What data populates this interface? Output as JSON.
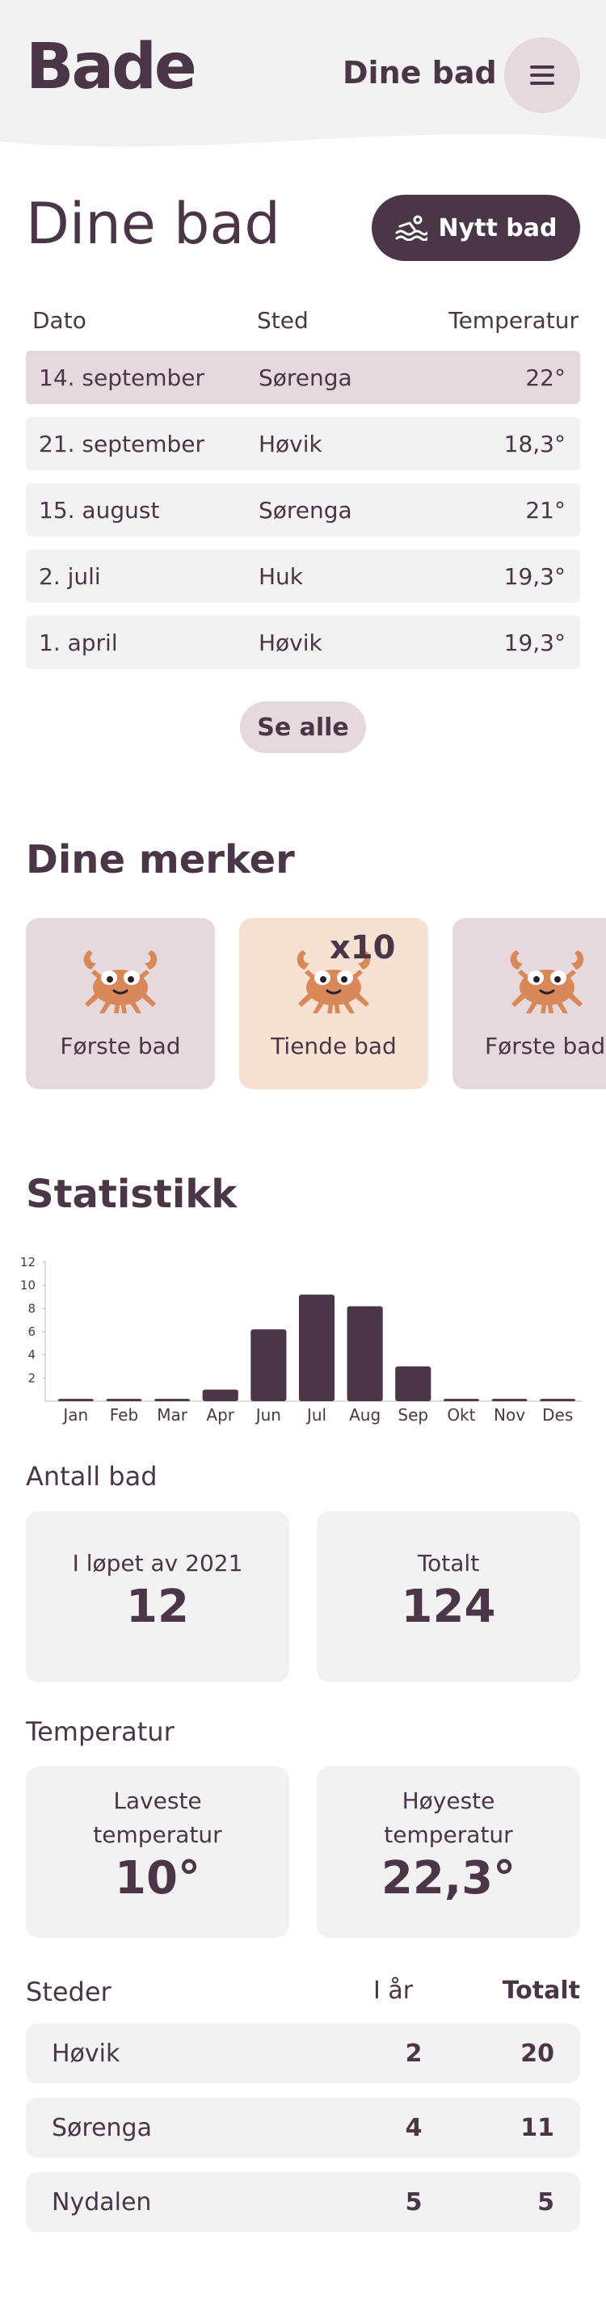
{
  "header": {
    "logo": "Bade",
    "nav_label": "Dine bad",
    "menu_icon": "hamburger-icon"
  },
  "baths": {
    "title": "Dine bad",
    "new_button": "Nytt bad",
    "new_button_icon": "swimmer-icon",
    "columns": [
      "Dato",
      "Sted",
      "Temperatur"
    ],
    "rows": [
      {
        "date": "14. september",
        "place": "Sørenga",
        "temp": "22°"
      },
      {
        "date": "21. september",
        "place": "Høvik",
        "temp": "18,3°"
      },
      {
        "date": "15. august",
        "place": "Sørenga",
        "temp": "21°"
      },
      {
        "date": "2. juli",
        "place": "Huk",
        "temp": "19,3°"
      },
      {
        "date": "1. april",
        "place": "Høvik",
        "temp": "19,3°"
      }
    ],
    "see_all": "Se alle"
  },
  "badges": {
    "title": "Dine merker",
    "items": [
      {
        "label": "Første bad",
        "icon": "crab-icon",
        "count": ""
      },
      {
        "label": "Tiende bad",
        "icon": "crab-icon",
        "count": "x10"
      },
      {
        "label": "Første bad",
        "icon": "crab-icon",
        "count": ""
      }
    ]
  },
  "stats": {
    "title": "Statistikk",
    "count_heading": "Antall bad",
    "year_label": "I løpet av 2021",
    "year_value": "12",
    "total_label": "Totalt",
    "total_value": "124",
    "temp_heading": "Temperatur",
    "min_label": "Laveste temperatur",
    "min_value": "10°",
    "max_label": "Høyeste temperatur",
    "max_value": "22,3°"
  },
  "places": {
    "heading": "Steder",
    "col_year": "I år",
    "col_total": "Totalt",
    "rows": [
      {
        "name": "Høvik",
        "year": "2",
        "total": "20"
      },
      {
        "name": "Sørenga",
        "year": "4",
        "total": "11"
      },
      {
        "name": "Nydalen",
        "year": "5",
        "total": "5"
      }
    ]
  },
  "colors": {
    "primary": "#4a3646",
    "highlight": "#e6d9de",
    "card": "#f2f2f2",
    "badge_alt": "#f7e1d2",
    "crab": "#d9885a"
  },
  "chart_data": {
    "type": "bar",
    "categories": [
      "Jan",
      "Feb",
      "Mar",
      "Apr",
      "Jun",
      "Jul",
      "Aug",
      "Sep",
      "Okt",
      "Nov",
      "Des"
    ],
    "values": [
      0.2,
      0.2,
      0.2,
      1,
      6.2,
      9.2,
      8.2,
      3,
      0.2,
      0.2,
      0.2
    ],
    "yticks": [
      "2",
      "4",
      "6",
      "8",
      "10",
      "12"
    ],
    "ylim": [
      0,
      12
    ],
    "grid": false
  }
}
